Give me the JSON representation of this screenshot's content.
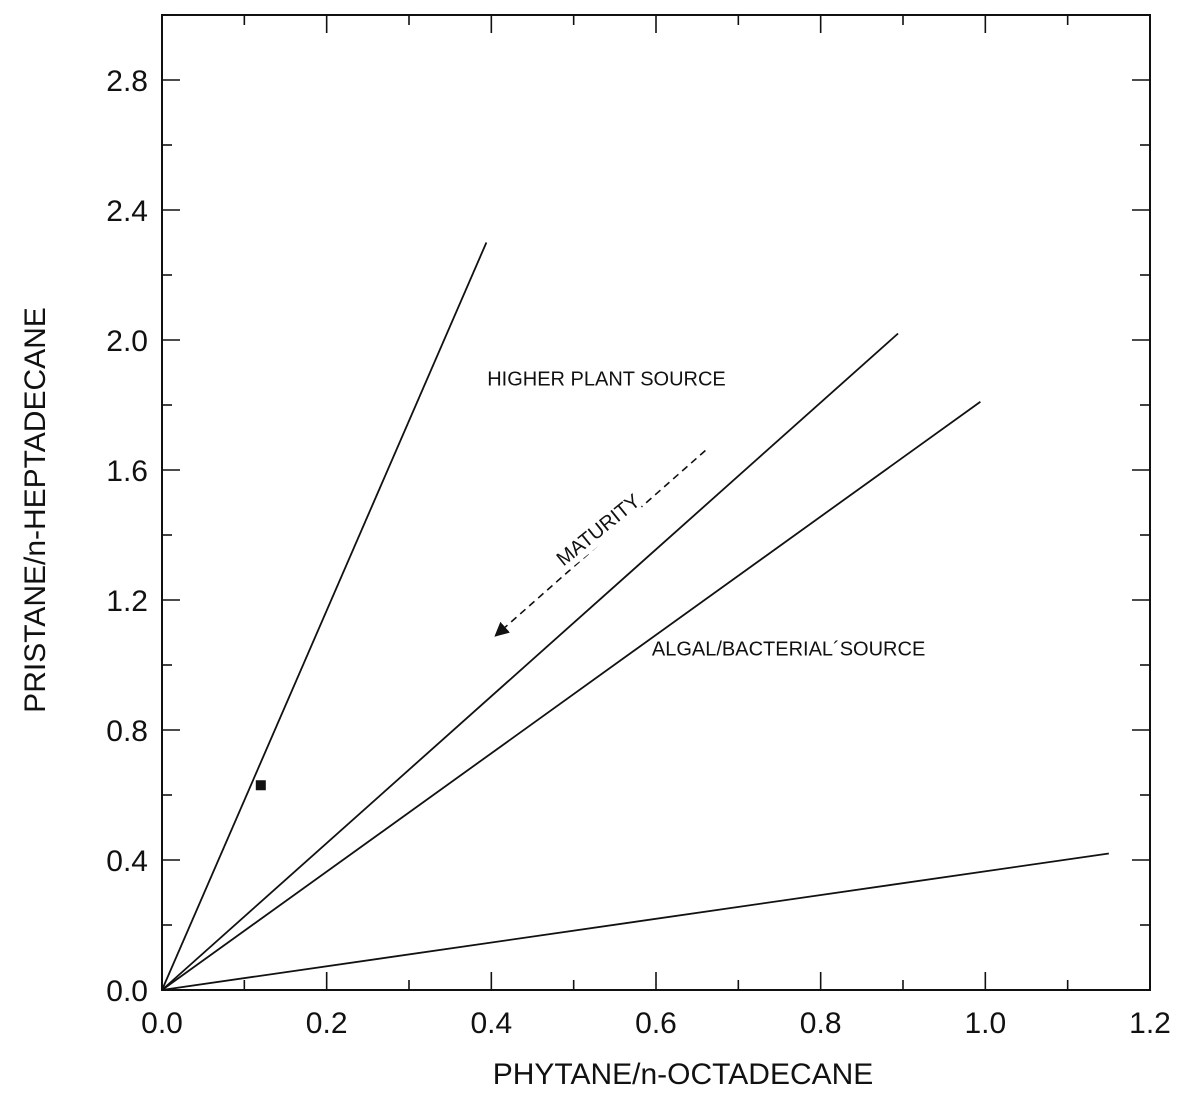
{
  "chart_data": {
    "type": "scatter",
    "xlabel": "PHYTANE/n-OCTADECANE",
    "ylabel": "PRISTANE/n-HEPTADECANE",
    "xlim": [
      0,
      1.2
    ],
    "ylim": [
      0,
      3.0
    ],
    "x_ticks": [
      "0.0",
      "0.2",
      "0.4",
      "0.6",
      "0.8",
      "1.0",
      "1.2"
    ],
    "y_ticks": [
      "0.0",
      "0.4",
      "0.8",
      "1.2",
      "1.6",
      "2.0",
      "2.4",
      "2.8"
    ],
    "x_tick_values": [
      0,
      0.2,
      0.4,
      0.6,
      0.8,
      1.0,
      1.2
    ],
    "y_tick_values": [
      0,
      0.4,
      0.8,
      1.2,
      1.6,
      2.0,
      2.4,
      2.8
    ],
    "x_minor_step": 0.1,
    "y_minor_step": 0.2,
    "reference_lines": [
      {
        "x": [
          0,
          0.394
        ],
        "y": [
          0,
          2.3
        ]
      },
      {
        "x": [
          0,
          0.894
        ],
        "y": [
          0,
          2.02
        ]
      },
      {
        "x": [
          0,
          0.994
        ],
        "y": [
          0,
          1.81
        ]
      },
      {
        "x": [
          0,
          1.15
        ],
        "y": [
          0,
          0.42
        ]
      }
    ],
    "points": [
      {
        "x": 0.12,
        "y": 0.63
      }
    ],
    "annotations": [
      {
        "text": "HIGHER PLANT SOURCE",
        "x": 0.395,
        "y": 1.86
      },
      {
        "text": "ALGAL/BACTERIAL´SOURCE",
        "x": 0.595,
        "y": 1.03
      },
      {
        "text": "MATURITY",
        "x": 0.535,
        "y": 1.4,
        "angle": -39
      }
    ],
    "maturity_arrow": {
      "from": {
        "x": 0.66,
        "y": 1.66
      },
      "to": {
        "x": 0.405,
        "y": 1.09
      }
    },
    "grid": false,
    "legend": "none"
  }
}
